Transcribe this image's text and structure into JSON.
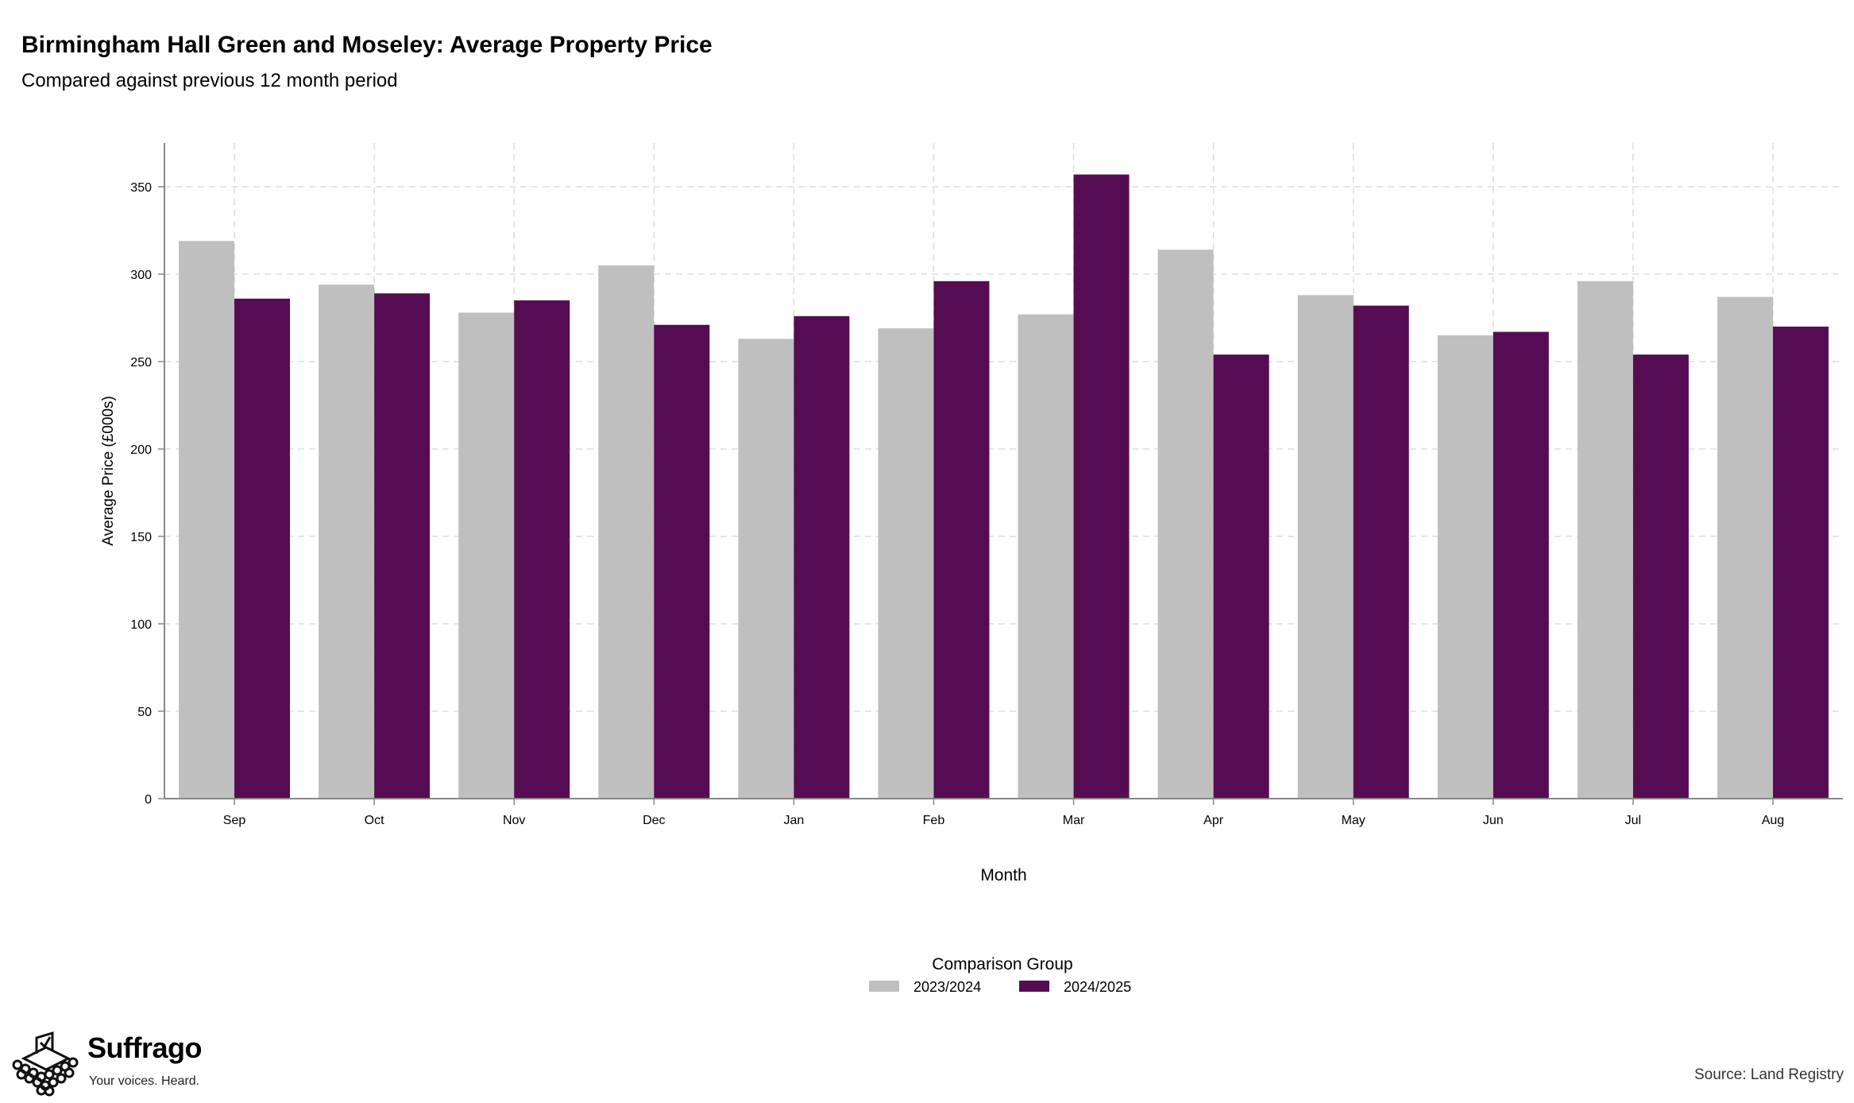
{
  "header": {
    "title": "Birmingham Hall Green and Moseley: Average Property Price",
    "subtitle": "Compared against previous 12 month period"
  },
  "footer": {
    "brand_name": "Suffrago",
    "brand_tagline": "Your voices. Heard.",
    "source": "Source: Land Registry"
  },
  "colors": {
    "series_2023_2024": "#bfbfbf",
    "series_2024_2025": "#560c52",
    "grid": "#dddddd",
    "axis": "#888888"
  },
  "chart_data": {
    "type": "bar",
    "title": "Birmingham Hall Green and Moseley: Average Property Price",
    "subtitle": "Compared against previous 12 month period",
    "xlabel": "Month",
    "ylabel": "Average Price (£000s)",
    "categories": [
      "Sep",
      "Oct",
      "Nov",
      "Dec",
      "Jan",
      "Feb",
      "Mar",
      "Apr",
      "May",
      "Jun",
      "Jul",
      "Aug"
    ],
    "series": [
      {
        "name": "2023/2024",
        "color": "#bfbfbf",
        "values": [
          319,
          294,
          278,
          305,
          263,
          269,
          277,
          314,
          288,
          265,
          296,
          287
        ]
      },
      {
        "name": "2024/2025",
        "color": "#560c52",
        "values": [
          286,
          289,
          285,
          271,
          276,
          296,
          357,
          254,
          282,
          267,
          254,
          270
        ]
      }
    ],
    "yticks": [
      0,
      50,
      100,
      150,
      200,
      250,
      300,
      350
    ],
    "ylim": [
      0,
      375
    ],
    "grid": true,
    "legend": {
      "title": "Comparison Group",
      "placement": "bottom-center"
    }
  }
}
